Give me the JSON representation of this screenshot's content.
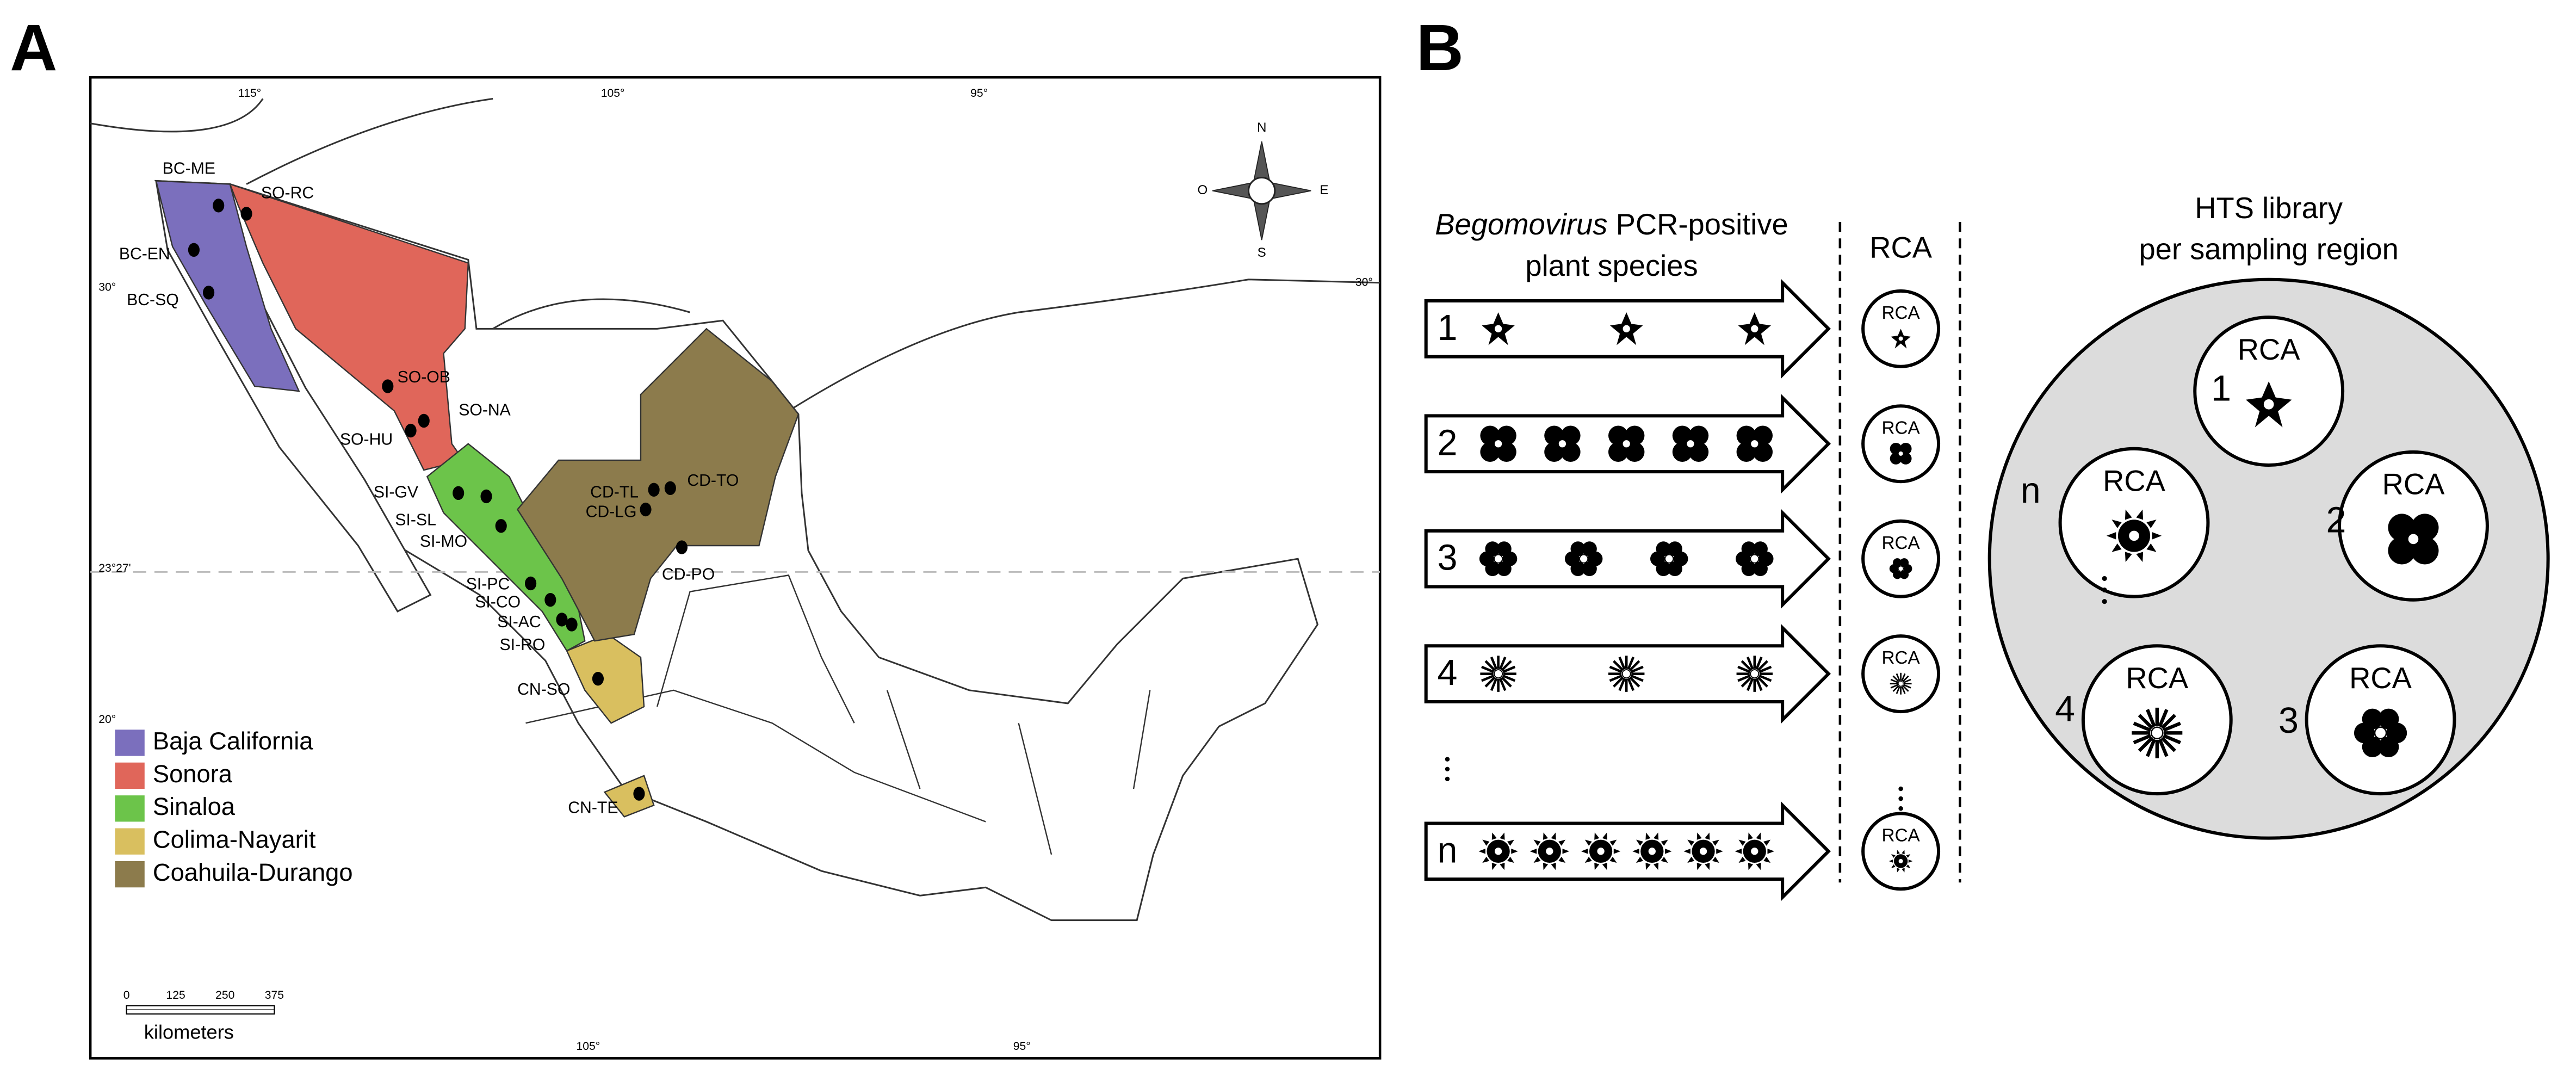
{
  "panel_a": {
    "label": "A",
    "lon_top": [
      "115°",
      "105°",
      "95°"
    ],
    "lon_bottom": [
      "105°",
      "95°"
    ],
    "lat_left": [
      "30°",
      "23°27'",
      "20°"
    ],
    "lat_right": [
      "30°"
    ],
    "compass": [
      "N",
      "E",
      "S",
      "O"
    ],
    "sites": [
      "BC-ME",
      "SO-RC",
      "BC-EN",
      "BC-SQ",
      "SO-OB",
      "SO-NA",
      "SO-HU",
      "SI-GV",
      "SI-SL",
      "SI-MO",
      "SI-PC",
      "SI-CO",
      "SI-AC",
      "SI-RO",
      "CD-TL",
      "CD-LG",
      "CD-TO",
      "CD-PO",
      "CN-SO",
      "CN-TE"
    ],
    "legend": [
      {
        "name": "Baja California",
        "color": "#7b6fbd"
      },
      {
        "name": "Sonora",
        "color": "#e0665a"
      },
      {
        "name": "Sinaloa",
        "color": "#6cc44a"
      },
      {
        "name": "Colima-Nayarit",
        "color": "#d9bf5f"
      },
      {
        "name": "Coahuila-Durango",
        "color": "#8c7b4c"
      }
    ],
    "scale": {
      "ticks": [
        "0",
        "125",
        "250",
        "375"
      ],
      "unit": "kilometers"
    }
  },
  "panel_b": {
    "label": "B",
    "title_italic": "Begomovirus",
    "title_rest": " PCR-positive",
    "title_line2": "plant species",
    "rca_header": "RCA",
    "rows": [
      {
        "index": "1",
        "rca": "RCA"
      },
      {
        "index": "2",
        "rca": "RCA"
      },
      {
        "index": "3",
        "rca": "RCA"
      },
      {
        "index": "4",
        "rca": "RCA"
      },
      {
        "index": "n",
        "rca": "RCA"
      }
    ],
    "hts_title": [
      "HTS library",
      "per sampling region"
    ],
    "library": [
      {
        "index": "1",
        "label": "RCA"
      },
      {
        "index": "2",
        "label": "RCA"
      },
      {
        "index": "3",
        "label": "RCA"
      },
      {
        "index": "4",
        "label": "RCA"
      },
      {
        "index": "n",
        "label": "RCA"
      }
    ]
  }
}
